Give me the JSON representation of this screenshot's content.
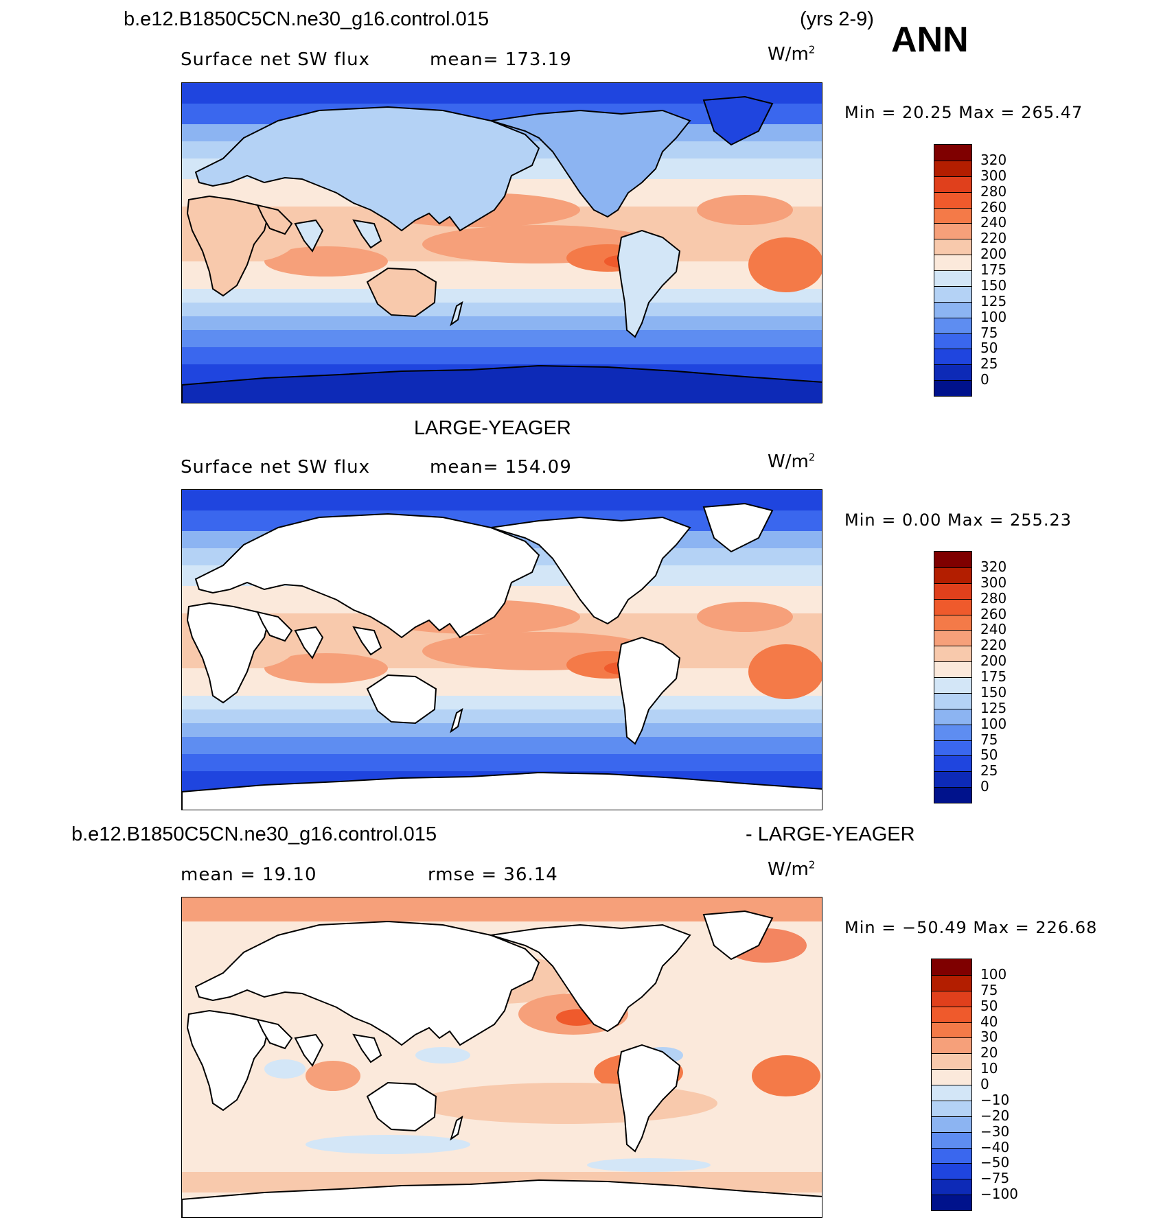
{
  "header": {
    "case_name": "b.e12.B1850C5CN.ne30_g16.control.015",
    "years": "(yrs 2-9)",
    "season": "ANN"
  },
  "panels": [
    {
      "case_label": "",
      "field_label": "Surface net SW flux",
      "stat_label": "mean=  173.19",
      "units": "W/m",
      "units_sup": "2",
      "minmax": "Min  =   20.25 Max  = 265.47",
      "colorbar": {
        "ticks": [
          "320",
          "300",
          "280",
          "260",
          "240",
          "220",
          "200",
          "175",
          "150",
          "125",
          "100",
          "75",
          "50",
          "25",
          "0"
        ],
        "colors": [
          "#7f0000",
          "#b31e00",
          "#e0401c",
          "#ef5a2c",
          "#f47a48",
          "#f6a07a",
          "#f8c9ac",
          "#fbe9db",
          "#d3e6f7",
          "#b4d2f5",
          "#8cb4f2",
          "#5e8df1",
          "#3a67ee",
          "#1f45df",
          "#0d2ab7",
          "#00128c"
        ]
      },
      "map": {
        "variant": "full"
      }
    },
    {
      "case_label": "LARGE-YEAGER",
      "field_label": "Surface net SW flux",
      "stat_label": "mean=  154.09",
      "units": "W/m",
      "units_sup": "2",
      "minmax": "Min  =    0.00 Max  = 255.23",
      "colorbar": {
        "ticks": [
          "320",
          "300",
          "280",
          "260",
          "240",
          "220",
          "200",
          "175",
          "150",
          "125",
          "100",
          "75",
          "50",
          "25",
          "0"
        ],
        "colors": [
          "#7f0000",
          "#b31e00",
          "#e0401c",
          "#ef5a2c",
          "#f47a48",
          "#f6a07a",
          "#f8c9ac",
          "#fbe9db",
          "#d3e6f7",
          "#b4d2f5",
          "#8cb4f2",
          "#5e8df1",
          "#3a67ee",
          "#1f45df",
          "#0d2ab7",
          "#00128c"
        ]
      },
      "map": {
        "variant": "ocean"
      }
    },
    {
      "case_label": "b.e12.B1850C5CN.ne30_g16.control.015",
      "case_label_right": "- LARGE-YEAGER",
      "field_label": "mean  =    19.10",
      "stat_label": "rmse  =    36.14",
      "units": "W/m",
      "units_sup": "2",
      "minmax": "Min  = −50.49 Max  = 226.68",
      "colorbar": {
        "ticks": [
          "100",
          "75",
          "50",
          "40",
          "30",
          "20",
          "10",
          "0",
          "−10",
          "−20",
          "−30",
          "−40",
          "−50",
          "−75",
          "−100"
        ],
        "colors": [
          "#7f0000",
          "#b31e00",
          "#e0401c",
          "#ef5a2c",
          "#f47a48",
          "#f6a07a",
          "#f8c9ac",
          "#fbe9db",
          "#d3e6f7",
          "#b4d2f5",
          "#8cb4f2",
          "#5e8df1",
          "#3a67ee",
          "#1f45df",
          "#0d2ab7",
          "#00128c"
        ]
      },
      "map": {
        "variant": "diff"
      }
    }
  ]
}
